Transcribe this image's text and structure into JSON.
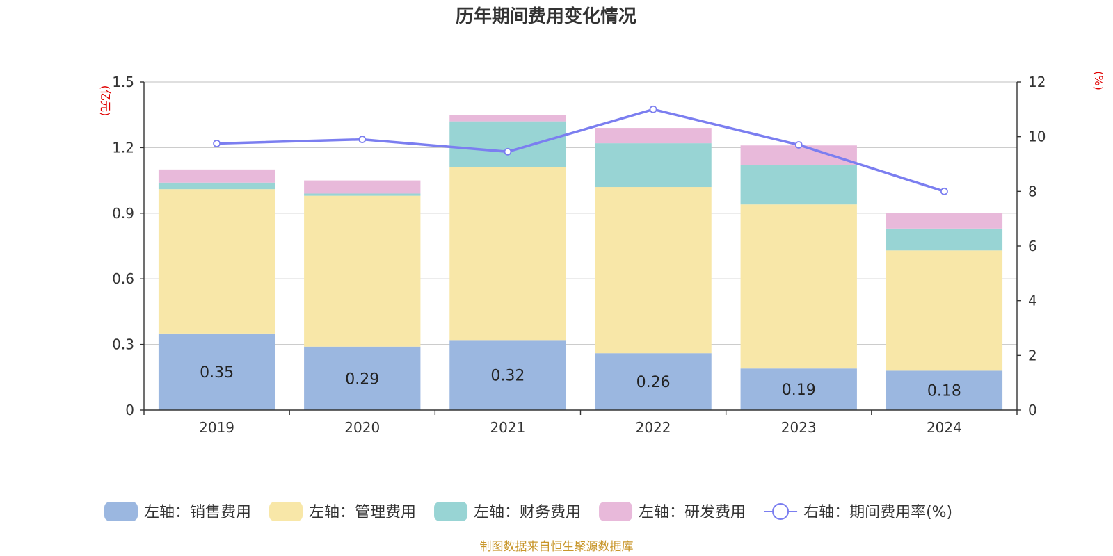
{
  "chart_data": {
    "type": "bar",
    "stacked": true,
    "title": "历年期间费用变化情况",
    "left_unit": "(亿元)",
    "right_unit": "(%)",
    "categories": [
      "2019",
      "2020",
      "2021",
      "2022",
      "2023",
      "2024"
    ],
    "left_axis": {
      "min": 0,
      "max": 1.5,
      "ticks": [
        "0",
        "0.3",
        "0.6",
        "0.9",
        "1.2",
        "1.5"
      ],
      "tick_values": [
        0,
        0.3,
        0.6,
        0.9,
        1.2,
        1.5
      ]
    },
    "right_axis": {
      "min": 0,
      "max": 12,
      "ticks": [
        "0",
        "2",
        "4",
        "6",
        "8",
        "10",
        "12"
      ],
      "tick_values": [
        0,
        2,
        4,
        6,
        8,
        10,
        12
      ]
    },
    "grid": true,
    "legend_position": "bottom",
    "series": [
      {
        "name": "左轴：销售费用",
        "axis": "left",
        "kind": "bar",
        "color": "#9bb7e0",
        "values": [
          0.35,
          0.29,
          0.32,
          0.26,
          0.19,
          0.18
        ],
        "data_labels": [
          "0.35",
          "0.29",
          "0.32",
          "0.26",
          "0.19",
          "0.18"
        ]
      },
      {
        "name": "左轴：管理费用",
        "axis": "left",
        "kind": "bar",
        "color": "#f8e7a8",
        "values": [
          0.66,
          0.69,
          0.79,
          0.76,
          0.75,
          0.55
        ]
      },
      {
        "name": "左轴：财务费用",
        "axis": "left",
        "kind": "bar",
        "color": "#98d4d4",
        "values": [
          0.03,
          0.01,
          0.21,
          0.2,
          0.18,
          0.1
        ]
      },
      {
        "name": "左轴：研发费用",
        "axis": "left",
        "kind": "bar",
        "color": "#e8b9da",
        "values": [
          0.06,
          0.06,
          0.03,
          0.07,
          0.09,
          0.07
        ]
      },
      {
        "name": "右轴：期间费用率(%)",
        "axis": "right",
        "kind": "line",
        "color": "#7b7ef0",
        "values": [
          9.75,
          9.9,
          9.45,
          11.0,
          9.7,
          8.0
        ]
      }
    ],
    "source": "制图数据来自恒生聚源数据库"
  }
}
